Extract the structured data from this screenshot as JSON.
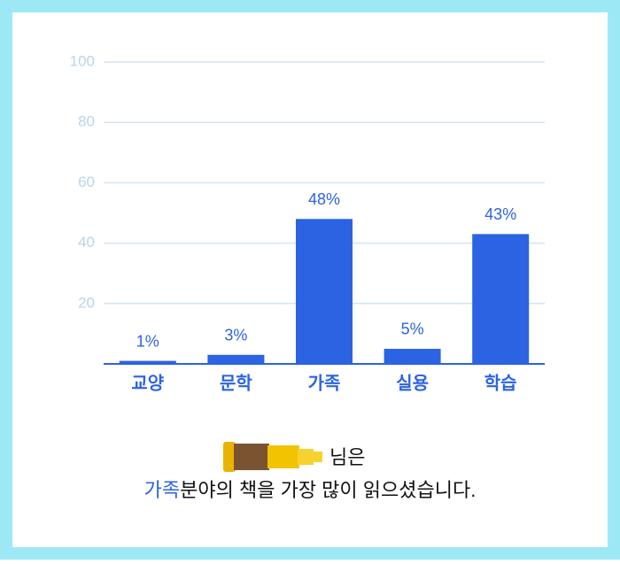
{
  "chart_data": {
    "type": "bar",
    "categories": [
      "교양",
      "문학",
      "가족",
      "실용",
      "학습"
    ],
    "values": [
      1,
      3,
      48,
      5,
      43
    ],
    "value_labels": [
      "1%",
      "3%",
      "48%",
      "5%",
      "43%"
    ],
    "color": "#2b63e3",
    "ylim": [
      0,
      100
    ],
    "yticks": [
      20,
      40,
      60,
      80,
      100
    ],
    "grid": true
  },
  "message": {
    "line1": "님은",
    "highlight": "가족",
    "line2": "분야의 책을 가장 많이 읽으셨습니다."
  }
}
